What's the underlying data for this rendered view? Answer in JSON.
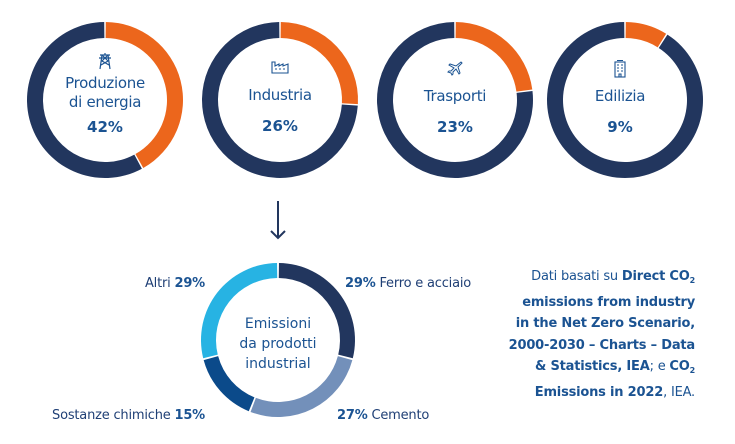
{
  "colors": {
    "navy": "#22365e",
    "orange": "#ec661c",
    "text_blue": "#1b5392",
    "light_blue": "#27b3e3",
    "steel_blue": "#7390ba",
    "mid_blue": "#0b4a8a"
  },
  "chart_data": [
    {
      "type": "pie",
      "title": "Produzione di energia",
      "icon": "power-tower-icon",
      "series": [
        {
          "name": "Produzione di energia",
          "value": 42
        },
        {
          "name": "Altro",
          "value": 58
        }
      ],
      "label": "42%"
    },
    {
      "type": "pie",
      "title": "Industria",
      "icon": "factory-icon",
      "series": [
        {
          "name": "Industria",
          "value": 26
        },
        {
          "name": "Altro",
          "value": 74
        }
      ],
      "label": "26%"
    },
    {
      "type": "pie",
      "title": "Trasporti",
      "icon": "airplane-icon",
      "series": [
        {
          "name": "Trasporti",
          "value": 23
        },
        {
          "name": "Altro",
          "value": 77
        }
      ],
      "label": "23%"
    },
    {
      "type": "pie",
      "title": "Edilizia",
      "icon": "building-icon",
      "series": [
        {
          "name": "Edilizia",
          "value": 9
        },
        {
          "name": "Altro",
          "value": 91
        }
      ],
      "label": "9%"
    },
    {
      "type": "pie",
      "title": "Emissioni da prodotti industrial",
      "series": [
        {
          "name": "Ferro e acciaio",
          "value": 29,
          "label": "29%"
        },
        {
          "name": "Cemento",
          "value": 27,
          "label": "27%"
        },
        {
          "name": "Sostanze chimiche",
          "value": 15,
          "label": "15%"
        },
        {
          "name": "Altri",
          "value": 29,
          "label": "29%"
        }
      ]
    }
  ],
  "top": [
    {
      "line1": "Produzione",
      "line2": "di energia",
      "pct": "42%"
    },
    {
      "line1": "Industria",
      "line2": "",
      "pct": "26%"
    },
    {
      "line1": "Trasporti",
      "line2": "",
      "pct": "23%"
    },
    {
      "line1": "Edilizia",
      "line2": "",
      "pct": "9%"
    }
  ],
  "bottom": {
    "center": [
      "Emissioni",
      "da prodotti",
      "industrial"
    ],
    "labels": {
      "ferro": {
        "pct": "29%",
        "name": "Ferro e acciaio"
      },
      "cemento": {
        "pct": "27%",
        "name": "Cemento"
      },
      "chimiche": {
        "pct": "15%",
        "name": "Sostanze chimiche"
      },
      "altri": {
        "pct": "29%",
        "name": "Altri"
      }
    }
  },
  "note": {
    "t1": "Dati basati su ",
    "b1": "Direct CO",
    "sub1": "2",
    "b2": " emissions from industry in the Net Zero Scenario, 2000-2030 – Charts – Data & Statistics, IEA",
    "t2": "; e ",
    "b3": "CO",
    "sub2": "2",
    "b4": " Emissions in 2022",
    "t3": ", IEA."
  }
}
